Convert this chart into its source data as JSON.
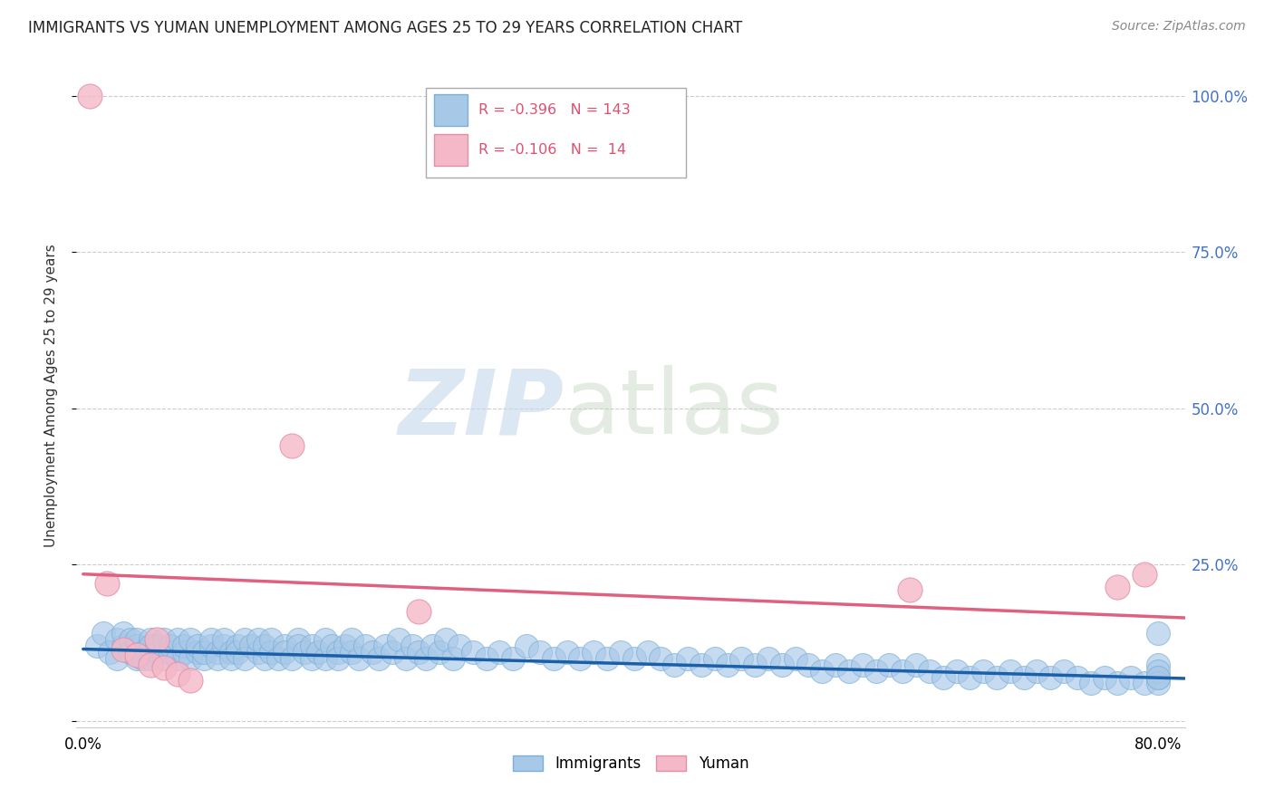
{
  "title": "IMMIGRANTS VS YUMAN UNEMPLOYMENT AMONG AGES 25 TO 29 YEARS CORRELATION CHART",
  "source": "Source: ZipAtlas.com",
  "ylabel": "Unemployment Among Ages 25 to 29 years",
  "xlim": [
    -0.005,
    0.82
  ],
  "ylim": [
    -0.01,
    1.05
  ],
  "yticks": [
    0.0,
    0.25,
    0.5,
    0.75,
    1.0
  ],
  "ytick_labels": [
    "",
    "25.0%",
    "50.0%",
    "75.0%",
    "100.0%"
  ],
  "xtick_positions": [
    0.0,
    0.2,
    0.4,
    0.6,
    0.8
  ],
  "xtick_labels": [
    "0.0%",
    "",
    "",
    "",
    "80.0%"
  ],
  "grid_color": "#cccccc",
  "background_color": "#ffffff",
  "immigrants_color": "#a8c8e8",
  "immigrants_edge_color": "#7ab0d8",
  "immigrants_line_color": "#1a5fa8",
  "yuman_color": "#f5b8c8",
  "yuman_edge_color": "#e090a8",
  "yuman_line_color": "#e06080",
  "R_immigrants": -0.396,
  "N_immigrants": 143,
  "R_yuman": -0.106,
  "N_yuman": 14,
  "legend_label_immigrants": "Immigrants",
  "legend_label_yuman": "Yuman",
  "watermark_zip": "ZIP",
  "watermark_atlas": "atlas",
  "imm_line_x0": 0.0,
  "imm_line_x1": 0.82,
  "imm_line_y0": 0.115,
  "imm_line_y1": 0.068,
  "yum_line_x0": 0.0,
  "yum_line_x1": 0.82,
  "yum_line_y0": 0.235,
  "yum_line_y1": 0.165,
  "immigrants_scatter_x": [
    0.01,
    0.015,
    0.02,
    0.025,
    0.025,
    0.03,
    0.03,
    0.035,
    0.035,
    0.04,
    0.04,
    0.04,
    0.045,
    0.045,
    0.05,
    0.05,
    0.05,
    0.055,
    0.055,
    0.06,
    0.06,
    0.065,
    0.065,
    0.07,
    0.07,
    0.075,
    0.075,
    0.08,
    0.08,
    0.085,
    0.085,
    0.09,
    0.09,
    0.095,
    0.095,
    0.1,
    0.1,
    0.105,
    0.105,
    0.11,
    0.11,
    0.115,
    0.115,
    0.12,
    0.12,
    0.125,
    0.13,
    0.13,
    0.135,
    0.135,
    0.14,
    0.14,
    0.145,
    0.15,
    0.15,
    0.155,
    0.16,
    0.16,
    0.165,
    0.17,
    0.17,
    0.175,
    0.18,
    0.18,
    0.185,
    0.19,
    0.19,
    0.195,
    0.2,
    0.2,
    0.205,
    0.21,
    0.215,
    0.22,
    0.225,
    0.23,
    0.235,
    0.24,
    0.245,
    0.25,
    0.255,
    0.26,
    0.265,
    0.27,
    0.275,
    0.28,
    0.29,
    0.3,
    0.31,
    0.32,
    0.33,
    0.34,
    0.35,
    0.36,
    0.37,
    0.38,
    0.39,
    0.4,
    0.41,
    0.42,
    0.43,
    0.44,
    0.45,
    0.46,
    0.47,
    0.48,
    0.49,
    0.5,
    0.51,
    0.52,
    0.53,
    0.54,
    0.55,
    0.56,
    0.57,
    0.58,
    0.59,
    0.6,
    0.61,
    0.62,
    0.63,
    0.64,
    0.65,
    0.66,
    0.67,
    0.68,
    0.69,
    0.7,
    0.71,
    0.72,
    0.73,
    0.74,
    0.75,
    0.76,
    0.77,
    0.78,
    0.79,
    0.8,
    0.8,
    0.8,
    0.8,
    0.8,
    0.8
  ],
  "immigrants_scatter_y": [
    0.12,
    0.14,
    0.11,
    0.13,
    0.1,
    0.12,
    0.14,
    0.11,
    0.13,
    0.1,
    0.12,
    0.13,
    0.11,
    0.1,
    0.13,
    0.12,
    0.1,
    0.11,
    0.12,
    0.1,
    0.13,
    0.11,
    0.12,
    0.1,
    0.13,
    0.11,
    0.12,
    0.1,
    0.13,
    0.11,
    0.12,
    0.1,
    0.11,
    0.12,
    0.13,
    0.11,
    0.1,
    0.12,
    0.13,
    0.11,
    0.1,
    0.12,
    0.11,
    0.13,
    0.1,
    0.12,
    0.11,
    0.13,
    0.1,
    0.12,
    0.11,
    0.13,
    0.1,
    0.12,
    0.11,
    0.1,
    0.13,
    0.12,
    0.11,
    0.1,
    0.12,
    0.11,
    0.1,
    0.13,
    0.12,
    0.11,
    0.1,
    0.12,
    0.11,
    0.13,
    0.1,
    0.12,
    0.11,
    0.1,
    0.12,
    0.11,
    0.13,
    0.1,
    0.12,
    0.11,
    0.1,
    0.12,
    0.11,
    0.13,
    0.1,
    0.12,
    0.11,
    0.1,
    0.11,
    0.1,
    0.12,
    0.11,
    0.1,
    0.11,
    0.1,
    0.11,
    0.1,
    0.11,
    0.1,
    0.11,
    0.1,
    0.09,
    0.1,
    0.09,
    0.1,
    0.09,
    0.1,
    0.09,
    0.1,
    0.09,
    0.1,
    0.09,
    0.08,
    0.09,
    0.08,
    0.09,
    0.08,
    0.09,
    0.08,
    0.09,
    0.08,
    0.07,
    0.08,
    0.07,
    0.08,
    0.07,
    0.08,
    0.07,
    0.08,
    0.07,
    0.08,
    0.07,
    0.06,
    0.07,
    0.06,
    0.07,
    0.06,
    0.14,
    0.09,
    0.07,
    0.08,
    0.06,
    0.07
  ],
  "yuman_scatter_x": [
    0.005,
    0.018,
    0.03,
    0.04,
    0.05,
    0.055,
    0.06,
    0.07,
    0.08,
    0.155,
    0.25,
    0.615,
    0.77,
    0.79
  ],
  "yuman_scatter_y": [
    1.0,
    0.22,
    0.115,
    0.105,
    0.09,
    0.13,
    0.085,
    0.075,
    0.065,
    0.44,
    0.175,
    0.21,
    0.215,
    0.235
  ]
}
